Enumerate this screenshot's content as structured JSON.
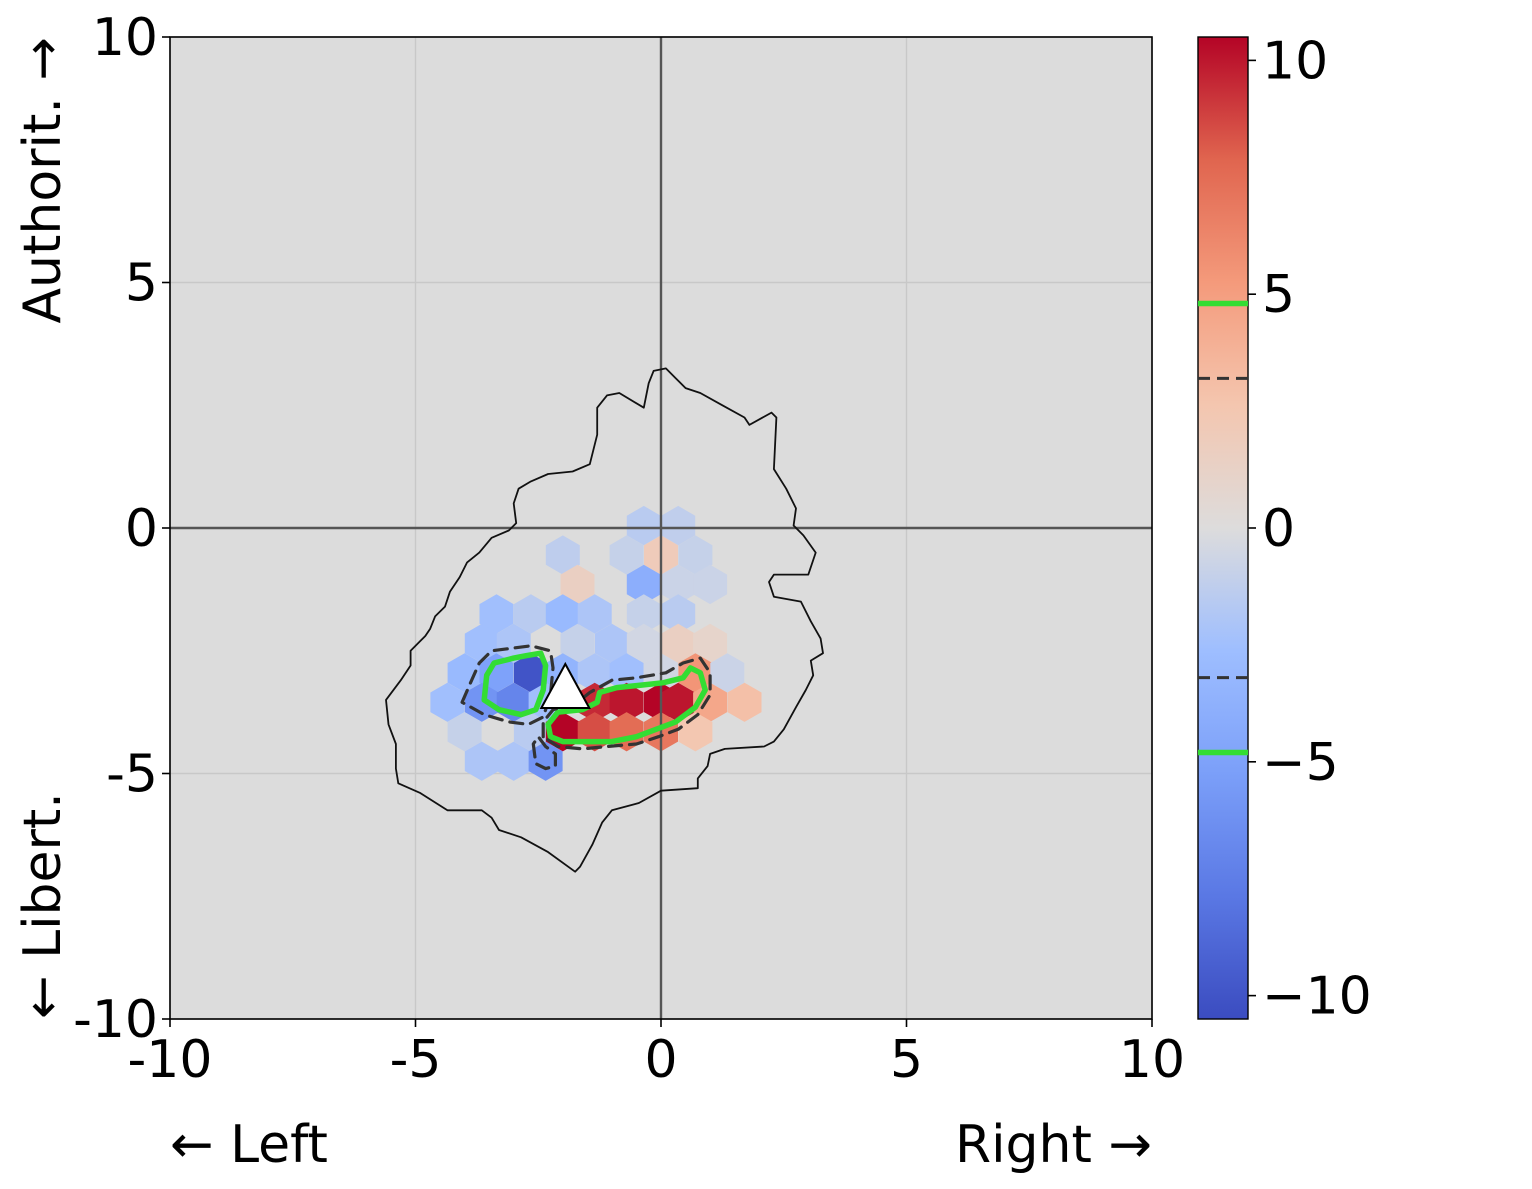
{
  "chart_data": {
    "type": "heatmap",
    "xlabel_left": "← Left",
    "xlabel_right": "Right →",
    "ylabel_top": "Authorit. →",
    "ylabel_bottom": "← Libert.",
    "xlim": [
      -10,
      10
    ],
    "ylim": [
      -10,
      10
    ],
    "xticks": [
      -10,
      -5,
      0,
      5,
      10
    ],
    "yticks": [
      -10,
      -5,
      0,
      5,
      10
    ],
    "xtick_labels": [
      "-10",
      "-5",
      "0",
      "5",
      "10"
    ],
    "ytick_labels": [
      "-10",
      "-5",
      "0",
      "5",
      "10"
    ],
    "grid": true,
    "colormap": "coolwarm",
    "color_range": [
      -10.5,
      10.5
    ],
    "colorbar_ticks": [
      10,
      5,
      0,
      -5,
      -10
    ],
    "colorbar_tick_labels": [
      "10",
      "5",
      "0",
      "−5",
      "−10"
    ],
    "colorbar_lines": [
      {
        "value": 4.8,
        "style": "solid",
        "color": "#33dd33"
      },
      {
        "value": 3.2,
        "style": "dashed",
        "color": "#333333"
      },
      {
        "value": -3.2,
        "style": "dashed",
        "color": "#333333"
      },
      {
        "value": -4.8,
        "style": "solid",
        "color": "#33dd33"
      }
    ],
    "background_color": "#dcdcdc",
    "marker": {
      "type": "triangle",
      "x": -1.95,
      "y": -3.3
    },
    "hex_cells": [
      {
        "x": -0.35,
        "y": 0.05,
        "value": -1.5
      },
      {
        "x": 0.35,
        "y": 0.05,
        "value": -1.2
      },
      {
        "x": -2.0,
        "y": -0.55,
        "value": -1.3
      },
      {
        "x": -0.7,
        "y": -0.55,
        "value": -1.0
      },
      {
        "x": 0.0,
        "y": -0.55,
        "value": 2.0
      },
      {
        "x": 0.7,
        "y": -0.55,
        "value": -1.0
      },
      {
        "x": -1.7,
        "y": -1.15,
        "value": 1.5
      },
      {
        "x": -0.35,
        "y": -1.15,
        "value": -4.0
      },
      {
        "x": 0.35,
        "y": -1.15,
        "value": -0.8
      },
      {
        "x": 1.0,
        "y": -1.15,
        "value": -0.8
      },
      {
        "x": -3.35,
        "y": -1.75,
        "value": -2.5
      },
      {
        "x": -2.65,
        "y": -1.75,
        "value": -1.5
      },
      {
        "x": -2.0,
        "y": -1.75,
        "value": -3.0
      },
      {
        "x": -1.35,
        "y": -1.75,
        "value": -2.0
      },
      {
        "x": -0.35,
        "y": -1.75,
        "value": -1.0
      },
      {
        "x": 0.35,
        "y": -1.75,
        "value": -1.5
      },
      {
        "x": -3.65,
        "y": -2.35,
        "value": -2.5
      },
      {
        "x": -3.0,
        "y": -2.35,
        "value": -2.0
      },
      {
        "x": -1.7,
        "y": -2.35,
        "value": -1.0
      },
      {
        "x": -1.0,
        "y": -2.35,
        "value": -2.0
      },
      {
        "x": -0.35,
        "y": -2.35,
        "value": -0.5
      },
      {
        "x": 0.35,
        "y": -2.35,
        "value": 1.5
      },
      {
        "x": 1.0,
        "y": -2.35,
        "value": 1.0
      },
      {
        "x": -4.0,
        "y": -2.95,
        "value": -3.0
      },
      {
        "x": -3.35,
        "y": -2.95,
        "value": -5.0
      },
      {
        "x": -2.65,
        "y": -2.95,
        "value": -10.0
      },
      {
        "x": -2.0,
        "y": -2.95,
        "value": -3.5
      },
      {
        "x": -1.35,
        "y": -2.95,
        "value": -2.0
      },
      {
        "x": -0.7,
        "y": -2.95,
        "value": -2.5
      },
      {
        "x": 0.0,
        "y": -2.95,
        "value": -0.5
      },
      {
        "x": 0.7,
        "y": -2.95,
        "value": 5.5
      },
      {
        "x": 1.35,
        "y": -2.95,
        "value": -0.8
      },
      {
        "x": -4.35,
        "y": -3.55,
        "value": -2.5
      },
      {
        "x": -3.65,
        "y": -3.55,
        "value": -6.0
      },
      {
        "x": -3.0,
        "y": -3.55,
        "value": -7.0
      },
      {
        "x": -2.35,
        "y": -3.55,
        "value": -2.5
      },
      {
        "x": -1.35,
        "y": -3.55,
        "value": 9.5
      },
      {
        "x": -0.7,
        "y": -3.55,
        "value": 10.0
      },
      {
        "x": 0.0,
        "y": -3.55,
        "value": 10.5
      },
      {
        "x": 0.35,
        "y": -3.55,
        "value": 10.0
      },
      {
        "x": 1.0,
        "y": -3.55,
        "value": 4.5
      },
      {
        "x": 1.7,
        "y": -3.55,
        "value": 3.0
      },
      {
        "x": -4.0,
        "y": -4.15,
        "value": -1.0
      },
      {
        "x": -2.65,
        "y": -4.15,
        "value": -1.5
      },
      {
        "x": -2.0,
        "y": -4.15,
        "value": 10.5
      },
      {
        "x": -1.35,
        "y": -4.15,
        "value": 8.5
      },
      {
        "x": -0.7,
        "y": -4.15,
        "value": 7.5
      },
      {
        "x": 0.0,
        "y": -4.15,
        "value": 7.0
      },
      {
        "x": 0.7,
        "y": -4.15,
        "value": 2.5
      },
      {
        "x": -3.65,
        "y": -4.75,
        "value": -2.0
      },
      {
        "x": -3.0,
        "y": -4.75,
        "value": -2.0
      },
      {
        "x": -2.35,
        "y": -4.75,
        "value": -6.0
      }
    ],
    "outline_contour": [
      [
        -5.6,
        -3.5
      ],
      [
        -5.3,
        -3.1
      ],
      [
        -5.1,
        -2.8
      ],
      [
        -5.1,
        -2.5
      ],
      [
        -4.9,
        -2.3
      ],
      [
        -4.8,
        -2.2
      ],
      [
        -4.7,
        -2.05
      ],
      [
        -4.6,
        -1.8
      ],
      [
        -4.4,
        -1.6
      ],
      [
        -4.3,
        -1.3
      ],
      [
        -4.1,
        -1.0
      ],
      [
        -3.95,
        -0.7
      ],
      [
        -3.7,
        -0.5
      ],
      [
        -3.45,
        -0.2
      ],
      [
        -3.1,
        -0.05
      ],
      [
        -2.95,
        0.1
      ],
      [
        -3.0,
        0.5
      ],
      [
        -2.9,
        0.8
      ],
      [
        -2.65,
        0.95
      ],
      [
        -2.3,
        1.1
      ],
      [
        -1.8,
        1.15
      ],
      [
        -1.45,
        1.3
      ],
      [
        -1.3,
        1.9
      ],
      [
        -1.3,
        2.45
      ],
      [
        -1.1,
        2.7
      ],
      [
        -0.85,
        2.75
      ],
      [
        -0.35,
        2.45
      ],
      [
        -0.25,
        2.95
      ],
      [
        -0.15,
        3.2
      ],
      [
        0.1,
        3.25
      ],
      [
        0.3,
        3.05
      ],
      [
        0.5,
        2.85
      ],
      [
        0.8,
        2.75
      ],
      [
        1.25,
        2.5
      ],
      [
        1.7,
        2.25
      ],
      [
        1.8,
        2.1
      ],
      [
        2.25,
        2.35
      ],
      [
        2.35,
        2.25
      ],
      [
        2.3,
        1.2
      ],
      [
        2.55,
        0.8
      ],
      [
        2.75,
        0.4
      ],
      [
        2.7,
        0.05
      ],
      [
        2.9,
        -0.15
      ],
      [
        3.15,
        -0.5
      ],
      [
        3.0,
        -0.95
      ],
      [
        2.3,
        -0.95
      ],
      [
        2.2,
        -1.1
      ],
      [
        2.3,
        -1.4
      ],
      [
        2.85,
        -1.5
      ],
      [
        3.05,
        -1.9
      ],
      [
        3.25,
        -2.25
      ],
      [
        3.3,
        -2.55
      ],
      [
        3.05,
        -2.7
      ],
      [
        3.1,
        -3.0
      ],
      [
        2.95,
        -3.3
      ],
      [
        2.75,
        -3.65
      ],
      [
        2.5,
        -4.1
      ],
      [
        2.3,
        -4.35
      ],
      [
        2.1,
        -4.45
      ],
      [
        1.3,
        -4.5
      ],
      [
        1.0,
        -4.6
      ],
      [
        0.95,
        -4.85
      ],
      [
        0.75,
        -5.1
      ],
      [
        0.75,
        -5.3
      ],
      [
        0.0,
        -5.35
      ],
      [
        -0.45,
        -5.6
      ],
      [
        -1.0,
        -5.75
      ],
      [
        -1.2,
        -6.0
      ],
      [
        -1.4,
        -6.45
      ],
      [
        -1.65,
        -6.9
      ],
      [
        -1.75,
        -7.0
      ],
      [
        -2.3,
        -6.6
      ],
      [
        -2.85,
        -6.3
      ],
      [
        -3.3,
        -6.15
      ],
      [
        -3.45,
        -5.9
      ],
      [
        -3.65,
        -5.75
      ],
      [
        -4.35,
        -5.75
      ],
      [
        -4.9,
        -5.4
      ],
      [
        -5.35,
        -5.2
      ],
      [
        -5.4,
        -4.9
      ],
      [
        -5.4,
        -4.4
      ],
      [
        -5.55,
        -4.0
      ]
    ],
    "contours": [
      {
        "style": "solid",
        "color": "#33dd33",
        "points": [
          [
            -3.6,
            -3.5
          ],
          [
            -3.55,
            -3.0
          ],
          [
            -3.4,
            -2.75
          ],
          [
            -3.0,
            -2.65
          ],
          [
            -2.75,
            -2.6
          ],
          [
            -2.45,
            -2.55
          ],
          [
            -2.35,
            -2.8
          ],
          [
            -2.4,
            -3.3
          ],
          [
            -2.55,
            -3.7
          ],
          [
            -2.85,
            -3.8
          ],
          [
            -3.3,
            -3.7
          ]
        ]
      },
      {
        "style": "dashed",
        "color": "#333333",
        "points": [
          [
            -4.05,
            -3.55
          ],
          [
            -3.9,
            -3.2
          ],
          [
            -3.7,
            -2.75
          ],
          [
            -3.45,
            -2.5
          ],
          [
            -3.05,
            -2.45
          ],
          [
            -2.65,
            -2.4
          ],
          [
            -2.25,
            -2.5
          ],
          [
            -2.2,
            -2.85
          ],
          [
            -2.25,
            -3.4
          ],
          [
            -2.4,
            -3.85
          ],
          [
            -2.7,
            -4.0
          ],
          [
            -3.1,
            -3.95
          ],
          [
            -3.6,
            -3.8
          ]
        ]
      },
      {
        "style": "solid",
        "color": "#33dd33",
        "points": [
          [
            -2.25,
            -4.25
          ],
          [
            -2.3,
            -4.0
          ],
          [
            -2.1,
            -3.75
          ],
          [
            -1.6,
            -3.7
          ],
          [
            -1.3,
            -3.55
          ],
          [
            -1.25,
            -3.35
          ],
          [
            -0.9,
            -3.25
          ],
          [
            -0.4,
            -3.2
          ],
          [
            0.05,
            -3.15
          ],
          [
            0.45,
            -3.05
          ],
          [
            0.6,
            -2.85
          ],
          [
            0.8,
            -2.95
          ],
          [
            0.9,
            -3.3
          ],
          [
            0.7,
            -3.65
          ],
          [
            0.3,
            -3.95
          ],
          [
            -0.1,
            -4.1
          ],
          [
            -0.5,
            -4.25
          ],
          [
            -1.0,
            -4.35
          ],
          [
            -1.6,
            -4.35
          ],
          [
            -2.0,
            -4.35
          ]
        ]
      },
      {
        "style": "dashed",
        "color": "#333333",
        "points": [
          [
            -2.4,
            -4.25
          ],
          [
            -2.4,
            -3.95
          ],
          [
            -2.2,
            -3.7
          ],
          [
            -1.7,
            -3.55
          ],
          [
            -1.45,
            -3.35
          ],
          [
            -1.0,
            -3.1
          ],
          [
            -0.5,
            -3.05
          ],
          [
            0.1,
            -2.95
          ],
          [
            0.45,
            -2.75
          ],
          [
            0.8,
            -2.65
          ],
          [
            1.0,
            -2.95
          ],
          [
            1.0,
            -3.4
          ],
          [
            0.75,
            -3.8
          ],
          [
            0.35,
            -4.1
          ],
          [
            -0.05,
            -4.25
          ],
          [
            -0.5,
            -4.4
          ],
          [
            -1.1,
            -4.45
          ],
          [
            -1.6,
            -4.5
          ],
          [
            -2.1,
            -4.45
          ]
        ]
      },
      {
        "style": "dashed",
        "color": "#333333",
        "points": [
          [
            -2.6,
            -4.4
          ],
          [
            -2.55,
            -4.8
          ],
          [
            -2.35,
            -4.9
          ],
          [
            -2.15,
            -4.85
          ],
          [
            -2.15,
            -4.6
          ],
          [
            -2.35,
            -4.45
          ],
          [
            -2.5,
            -4.25
          ]
        ]
      }
    ]
  }
}
